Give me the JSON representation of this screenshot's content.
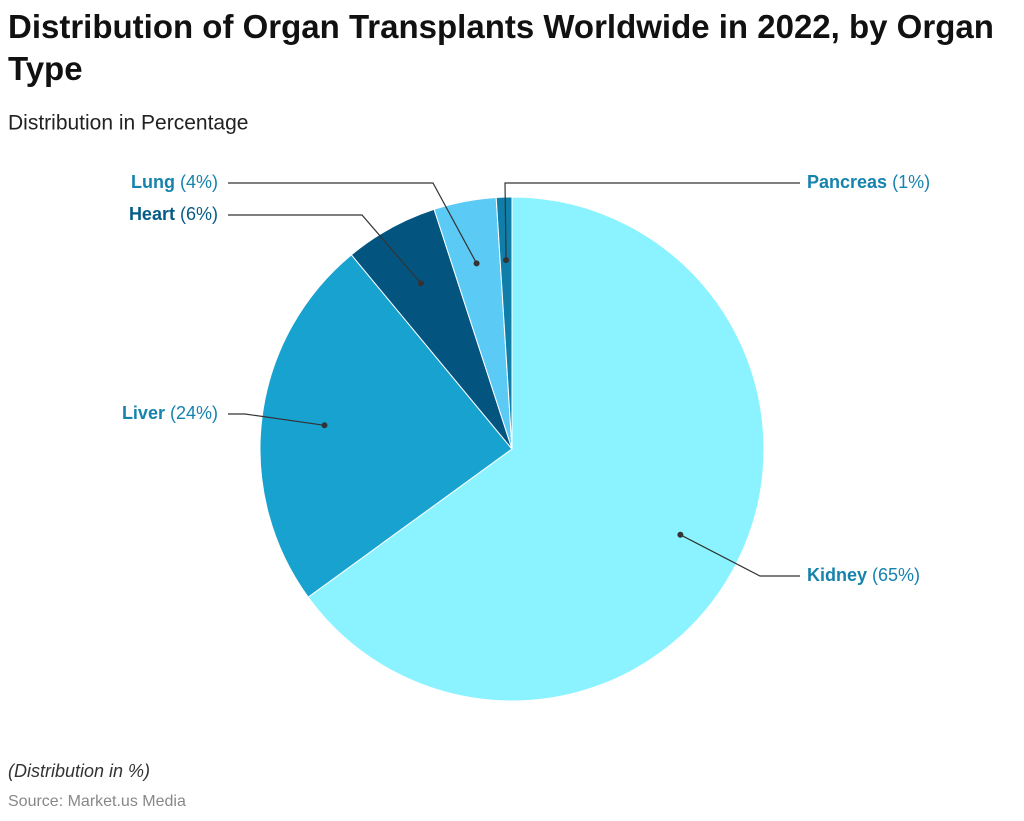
{
  "chart_data": {
    "type": "pie",
    "title": "Distribution of Organ Transplants Worldwide in 2022, by Organ Type",
    "subtitle": "Distribution in Percentage",
    "categories": [
      "Kidney",
      "Liver",
      "Heart",
      "Lung",
      "Pancreas"
    ],
    "values": [
      65,
      24,
      6,
      4,
      1
    ],
    "value_labels": [
      "(65%)",
      "(24%)",
      "(6%)",
      "(4%)",
      "(1%)"
    ],
    "colors": [
      "#8af3ff",
      "#18a2cf",
      "#035580",
      "#5bcaf5",
      "#0f7ea8"
    ],
    "label_colors": [
      "#1683ad",
      "#1683ad",
      "#045c86",
      "#1683ad",
      "#1683ad"
    ],
    "note": "(Distribution in %)",
    "source": "Source: Market.us Media"
  }
}
